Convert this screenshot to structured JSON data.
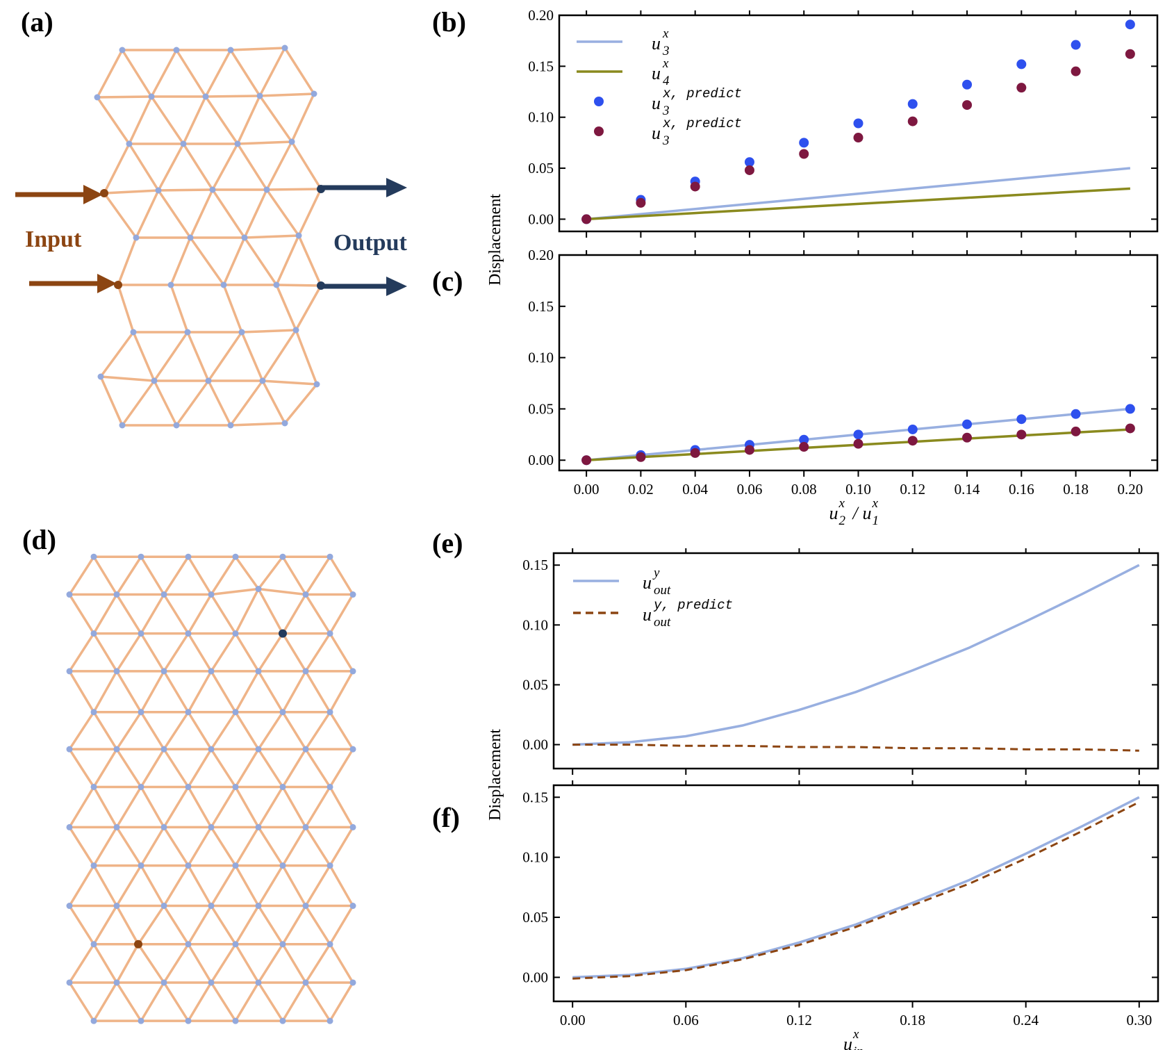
{
  "panels": {
    "a": "(a)",
    "b": "(b)",
    "c": "(c)",
    "d": "(d)",
    "e": "(e)",
    "f": "(f)"
  },
  "diagram": {
    "input_label": "Input",
    "output_label": "Output",
    "colors": {
      "edge": "#efb488",
      "node": "#93a9dd",
      "input": "#8c4512",
      "output": "#243b5c"
    }
  },
  "chart_data": [
    {
      "id": "b",
      "type": "scatter",
      "x": [
        0.0,
        0.02,
        0.04,
        0.06,
        0.08,
        0.1,
        0.12,
        0.14,
        0.16,
        0.18,
        0.2
      ],
      "xlim": [
        -0.01,
        0.21
      ],
      "ylim": [
        -0.012,
        0.2
      ],
      "yticks": [
        "0.00",
        "0.05",
        "0.10",
        "0.15",
        "0.20"
      ],
      "ytick_values": [
        0.0,
        0.05,
        0.1,
        0.15,
        0.2
      ],
      "series": [
        {
          "key": "u3",
          "kind": "line",
          "color": "#98afe0",
          "legend": "u",
          "sub": "3",
          "sup": "x",
          "values": [
            0.0,
            0.005,
            0.01,
            0.015,
            0.02,
            0.025,
            0.03,
            0.035,
            0.04,
            0.045,
            0.05
          ]
        },
        {
          "key": "u4",
          "kind": "line",
          "color": "#8a8a1e",
          "legend": "u",
          "sub": "4",
          "sup": "x",
          "values": [
            0.0,
            0.003,
            0.006,
            0.009,
            0.012,
            0.015,
            0.018,
            0.021,
            0.024,
            0.027,
            0.03
          ]
        },
        {
          "key": "u3p",
          "kind": "points",
          "color": "#2e50ee",
          "legend": "u",
          "sub": "3",
          "sup": "x, predict",
          "values": [
            0.0,
            0.019,
            0.037,
            0.056,
            0.075,
            0.094,
            0.113,
            0.132,
            0.152,
            0.171,
            0.191
          ]
        },
        {
          "key": "u3p2",
          "kind": "points",
          "color": "#7e1840",
          "legend": "u",
          "sub": "3",
          "sup": "x, predict",
          "values": [
            0.0,
            0.016,
            0.032,
            0.048,
            0.064,
            0.08,
            0.096,
            0.112,
            0.129,
            0.145,
            0.162
          ]
        }
      ]
    },
    {
      "id": "c",
      "type": "scatter",
      "x": [
        0.0,
        0.02,
        0.04,
        0.06,
        0.08,
        0.1,
        0.12,
        0.14,
        0.16,
        0.18,
        0.2
      ],
      "xlim": [
        -0.01,
        0.21
      ],
      "ylim": [
        -0.01,
        0.2
      ],
      "xticks": [
        "0.00",
        "0.02",
        "0.04",
        "0.06",
        "0.08",
        "0.10",
        "0.12",
        "0.14",
        "0.16",
        "0.18",
        "0.20"
      ],
      "xtick_values": [
        0.0,
        0.02,
        0.04,
        0.06,
        0.08,
        0.1,
        0.12,
        0.14,
        0.16,
        0.18,
        0.2
      ],
      "yticks": [
        "0.00",
        "0.05",
        "0.10",
        "0.15",
        "0.20"
      ],
      "ytick_values": [
        0.0,
        0.05,
        0.1,
        0.15,
        0.2
      ],
      "xlabel": {
        "base": "u",
        "sub": "2",
        "sup": "x",
        "slash": "/",
        "base2": "u",
        "sub2": "1",
        "sup2": "x"
      },
      "ylabel": "Displacement",
      "series": [
        {
          "key": "u3",
          "kind": "line",
          "color": "#98afe0",
          "values": [
            0.0,
            0.005,
            0.01,
            0.015,
            0.02,
            0.025,
            0.03,
            0.035,
            0.04,
            0.045,
            0.05
          ]
        },
        {
          "key": "u4",
          "kind": "line",
          "color": "#8a8a1e",
          "values": [
            0.0,
            0.003,
            0.006,
            0.009,
            0.012,
            0.015,
            0.018,
            0.021,
            0.024,
            0.027,
            0.03
          ]
        },
        {
          "key": "u3p",
          "kind": "points",
          "color": "#2e50ee",
          "values": [
            0.0,
            0.005,
            0.01,
            0.015,
            0.02,
            0.025,
            0.03,
            0.035,
            0.04,
            0.045,
            0.05
          ]
        },
        {
          "key": "u4p",
          "kind": "points",
          "color": "#7e1840",
          "values": [
            0.0,
            0.003,
            0.007,
            0.01,
            0.013,
            0.016,
            0.019,
            0.022,
            0.025,
            0.028,
            0.031
          ]
        }
      ]
    },
    {
      "id": "e",
      "type": "line",
      "x": [
        0.0,
        0.03,
        0.06,
        0.09,
        0.12,
        0.15,
        0.18,
        0.21,
        0.24,
        0.27,
        0.3
      ],
      "xlim": [
        -0.01,
        0.31
      ],
      "ylim": [
        -0.02,
        0.16
      ],
      "yticks": [
        "0.00",
        "0.05",
        "0.10",
        "0.15"
      ],
      "ytick_values": [
        0.0,
        0.05,
        0.1,
        0.15
      ],
      "series": [
        {
          "key": "uout",
          "kind": "line",
          "color": "#98afe0",
          "legend": "u",
          "sub": "out",
          "sup": "y",
          "values": [
            0.0,
            0.002,
            0.007,
            0.016,
            0.029,
            0.044,
            0.062,
            0.081,
            0.103,
            0.126,
            0.15
          ]
        },
        {
          "key": "uoutp",
          "kind": "dashed",
          "color": "#8c4512",
          "legend": "u",
          "sub": "out",
          "sup": "y, predict",
          "values": [
            0.0,
            0.0,
            -0.001,
            -0.001,
            -0.002,
            -0.002,
            -0.003,
            -0.003,
            -0.004,
            -0.004,
            -0.005
          ]
        }
      ]
    },
    {
      "id": "f",
      "type": "line",
      "x": [
        0.0,
        0.03,
        0.06,
        0.09,
        0.12,
        0.15,
        0.18,
        0.21,
        0.24,
        0.27,
        0.3
      ],
      "xlim": [
        -0.01,
        0.31
      ],
      "ylim": [
        -0.02,
        0.16
      ],
      "xticks": [
        "0.00",
        "0.06",
        "0.12",
        "0.18",
        "0.24",
        "0.30"
      ],
      "xtick_values": [
        0.0,
        0.06,
        0.12,
        0.18,
        0.24,
        0.3
      ],
      "yticks": [
        "0.00",
        "0.05",
        "0.10",
        "0.15"
      ],
      "ytick_values": [
        0.0,
        0.05,
        0.1,
        0.15
      ],
      "xlabel": {
        "base": "u",
        "sub": "in",
        "sup": "x"
      },
      "ylabel": "Displacement",
      "series": [
        {
          "key": "uout",
          "kind": "line",
          "color": "#98afe0",
          "values": [
            0.0,
            0.002,
            0.007,
            0.016,
            0.029,
            0.044,
            0.062,
            0.081,
            0.103,
            0.126,
            0.15
          ]
        },
        {
          "key": "uoutp",
          "kind": "dashed",
          "color": "#8c4512",
          "values": [
            -0.001,
            0.001,
            0.006,
            0.015,
            0.027,
            0.042,
            0.06,
            0.078,
            0.099,
            0.122,
            0.146
          ]
        }
      ]
    }
  ]
}
